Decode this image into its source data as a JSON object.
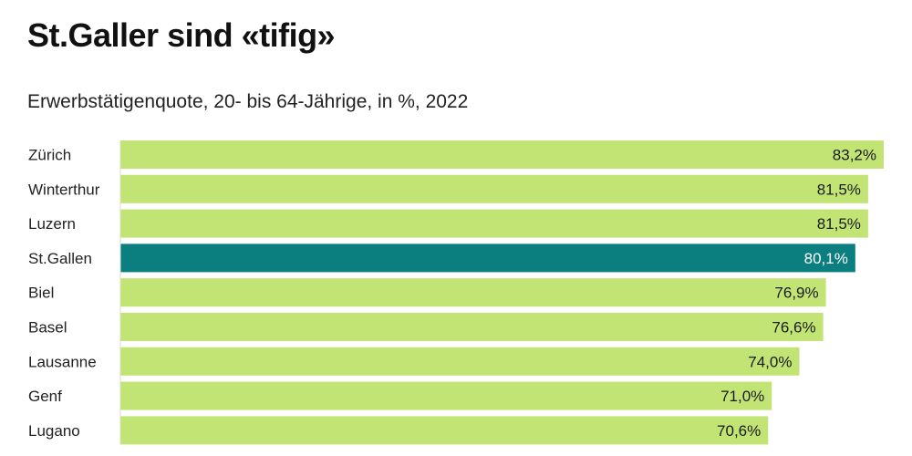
{
  "header": {
    "title": "St.Galler sind «tifig»",
    "subtitle": "Erwerbstätigenquote, 20- bis 64-Jährige, in %, 2022"
  },
  "chart_data": {
    "type": "bar",
    "orientation": "horizontal",
    "title": "St.Galler sind «tifig»",
    "subtitle": "Erwerbstätigenquote, 20- bis 64-Jährige, in %, 2022",
    "xlabel": "",
    "ylabel": "",
    "xlim": [
      0,
      83.2
    ],
    "grid": false,
    "legend": "none",
    "categories": [
      "Zürich",
      "Winterthur",
      "Luzern",
      "St.Gallen",
      "Biel",
      "Basel",
      "Lausanne",
      "Genf",
      "Lugano"
    ],
    "values": [
      83.2,
      81.5,
      81.5,
      80.1,
      76.9,
      76.6,
      74.0,
      71.0,
      70.6
    ],
    "value_labels": [
      "83,2%",
      "81,5%",
      "81,5%",
      "80,1%",
      "76,9%",
      "76,6%",
      "74,0%",
      "71,0%",
      "70,6%"
    ],
    "highlight_category": "St.Gallen",
    "colors": {
      "bar": "#c2e474",
      "highlight": "#0b7f80",
      "label_dark": "#1a1a1a",
      "label_light": "#ffffff",
      "category_text": "#222222"
    }
  }
}
